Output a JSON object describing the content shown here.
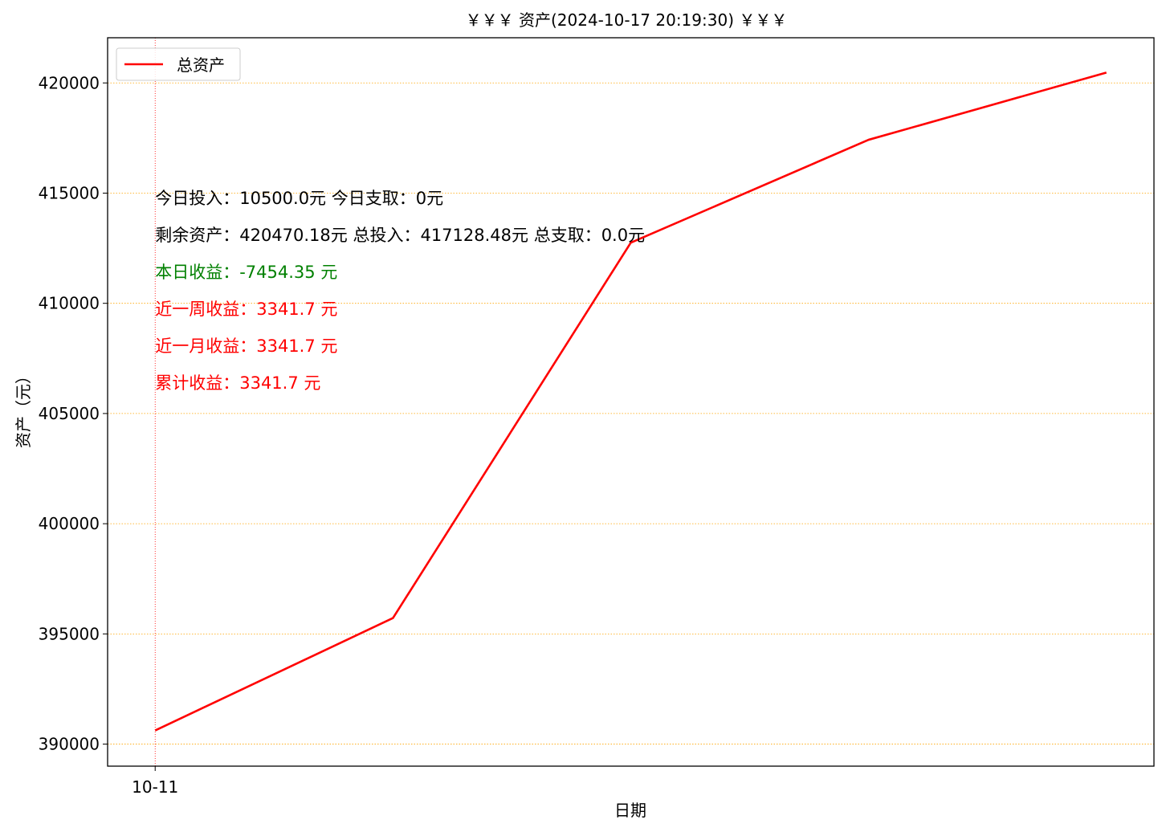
{
  "chart_data": {
    "type": "line",
    "title": "￥￥￥ 资产(2024-10-17 20:19:30) ￥￥￥",
    "xlabel": "日期",
    "ylabel": "资产（元）",
    "x_tick_labels": [
      "10-11"
    ],
    "y_tick_labels": [
      "390000",
      "395000",
      "400000",
      "405000",
      "410000",
      "415000",
      "420000"
    ],
    "y_ticks": [
      390000,
      395000,
      400000,
      405000,
      410000,
      415000,
      420000
    ],
    "ylim": [
      389000,
      422050
    ],
    "xlim": [
      -0.2,
      4.2
    ],
    "grid": {
      "horizontal": true,
      "color": "#FFA500",
      "style": "dotted"
    },
    "vertical_marker": {
      "x": 0,
      "color": "#FF0000",
      "style": "dotted"
    },
    "legend": {
      "placement": "top-left",
      "entries": [
        {
          "label": "总资产",
          "color": "#FF0000"
        }
      ]
    },
    "series": [
      {
        "name": "总资产",
        "color": "#FF0000",
        "x": [
          0,
          1,
          2,
          3,
          4
        ],
        "values": [
          390620,
          395720,
          412750,
          417420,
          420470.18
        ]
      }
    ],
    "annotations": [
      {
        "text": "今日投入：10500.0元 今日支取：0元",
        "color": "#000000"
      },
      {
        "text": "剩余资产：420470.18元 总投入：417128.48元  总支取：0.0元",
        "color": "#000000"
      },
      {
        "text": "本日收益：-7454.35 元",
        "color": "#008000"
      },
      {
        "text": "近一周收益：3341.7 元",
        "color": "#FF0000"
      },
      {
        "text": "近一月收益：3341.7 元",
        "color": "#FF0000"
      },
      {
        "text": "累计收益：3341.7 元",
        "color": "#FF0000"
      }
    ]
  }
}
